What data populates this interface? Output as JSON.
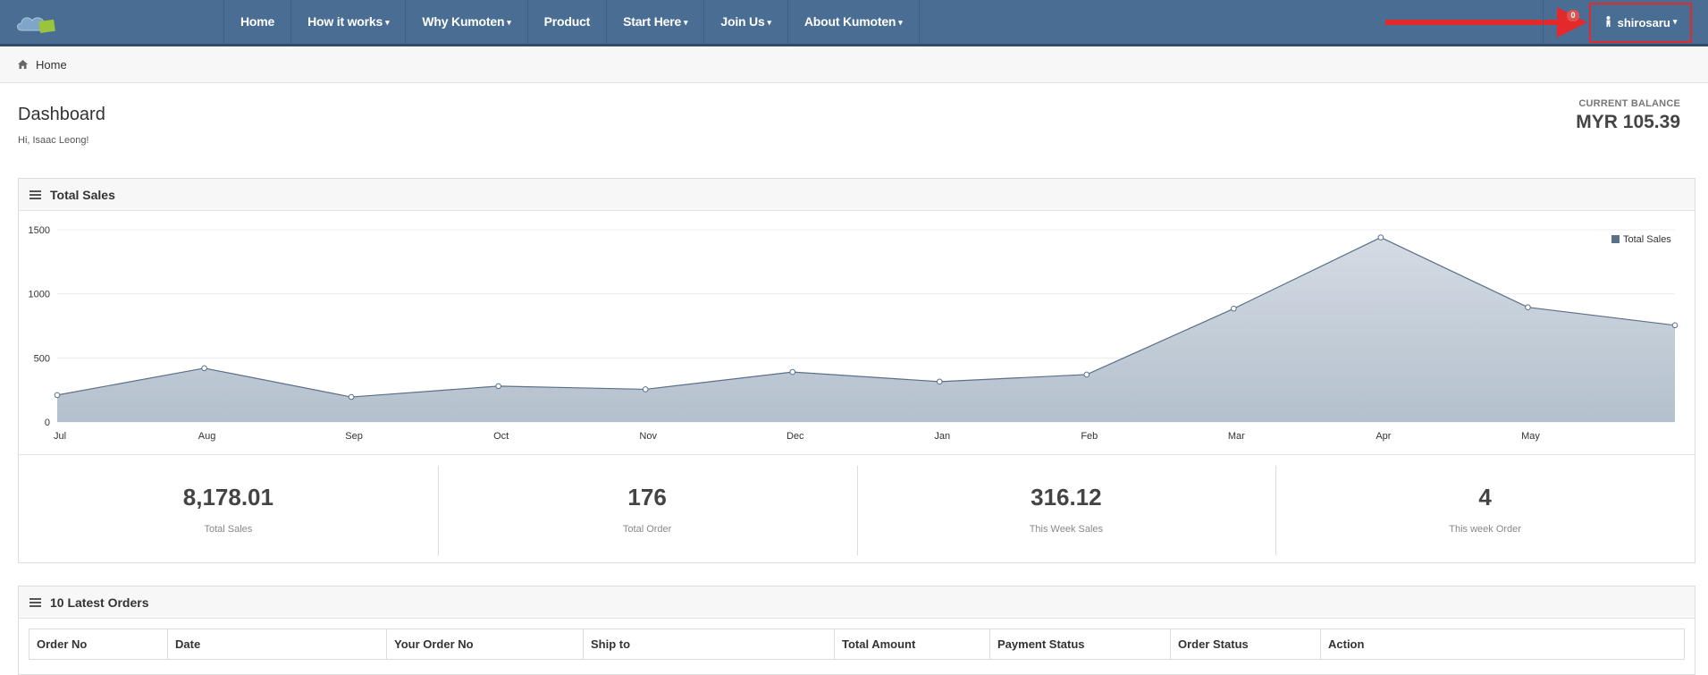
{
  "navbar": {
    "items": [
      {
        "label": "Home",
        "dropdown": false
      },
      {
        "label": "How it works",
        "dropdown": true
      },
      {
        "label": "Why Kumoten",
        "dropdown": true
      },
      {
        "label": "Product",
        "dropdown": false
      },
      {
        "label": "Start Here",
        "dropdown": true
      },
      {
        "label": "Join Us",
        "dropdown": true
      },
      {
        "label": "About Kumoten",
        "dropdown": true
      }
    ],
    "caret": "▾",
    "notification_count": "0",
    "username": "shirosaru",
    "colors": {
      "bar": "#4a6e93",
      "highlight": "#e3292b"
    }
  },
  "breadcrumb": {
    "label": "Home",
    "icon": "home-icon"
  },
  "header": {
    "title": "Dashboard",
    "greeting": "Hi, Isaac Leong!",
    "balance_label": "CURRENT BALANCE",
    "balance_value": "MYR 105.39"
  },
  "sales_panel": {
    "title": "Total Sales"
  },
  "chart_data": {
    "type": "area",
    "categories": [
      "Jul",
      "Aug",
      "Sep",
      "Oct",
      "Nov",
      "Dec",
      "Jan",
      "Feb",
      "Mar",
      "Apr",
      "May",
      ""
    ],
    "series": [
      {
        "name": "Total Sales",
        "values": [
          210,
          420,
          195,
          280,
          255,
          390,
          315,
          370,
          885,
          1440,
          895,
          755
        ]
      }
    ],
    "yticks": [
      0,
      500,
      1000,
      1500
    ],
    "ylim": [
      0,
      1500
    ],
    "legend": "top-right",
    "grid": true,
    "colors": {
      "line": "#5a7089",
      "fill_top": "#d4dbe3",
      "fill_bottom": "#b4c0cd"
    }
  },
  "stats": [
    {
      "value": "8,178.01",
      "label": "Total Sales"
    },
    {
      "value": "176",
      "label": "Total Order"
    },
    {
      "value": "316.12",
      "label": "This Week Sales"
    },
    {
      "value": "4",
      "label": "This week Order"
    }
  ],
  "orders_panel": {
    "title": "10 Latest Orders",
    "columns": [
      "Order No",
      "Date",
      "Your Order No",
      "Ship to",
      "Total Amount",
      "Payment Status",
      "Order Status",
      "Action"
    ]
  }
}
